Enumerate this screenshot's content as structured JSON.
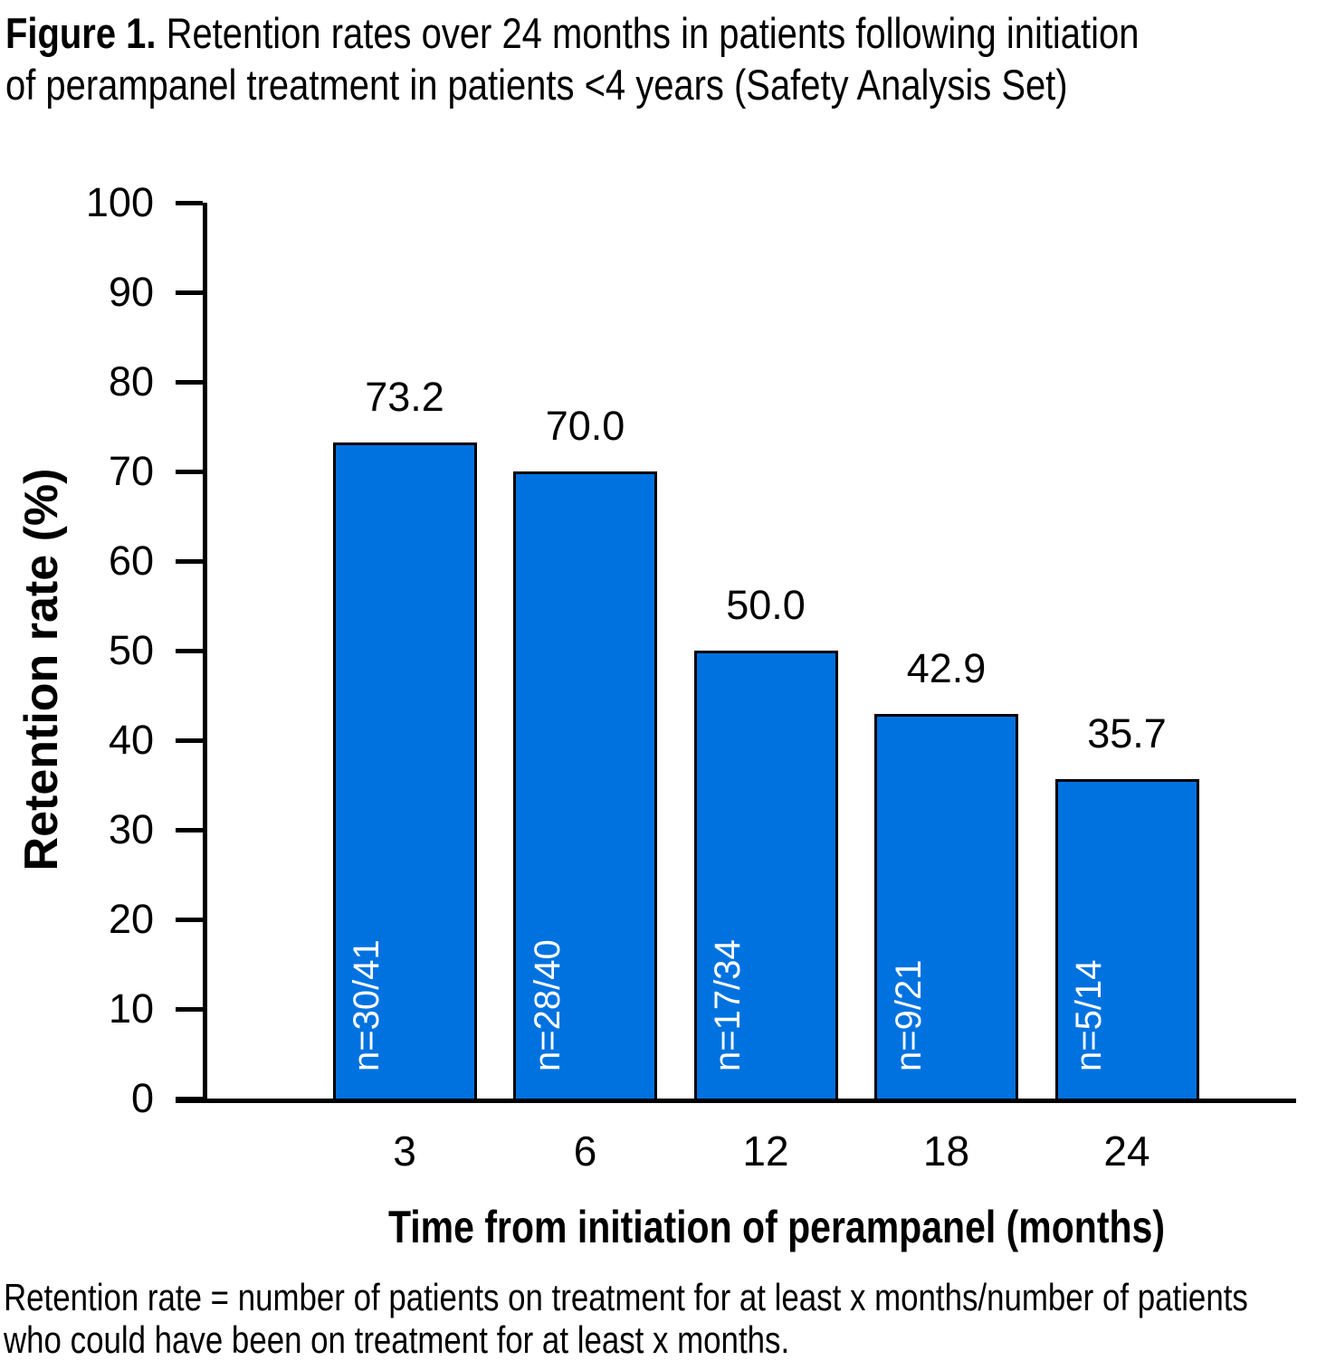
{
  "figure": {
    "title_bold": "Figure 1.",
    "title_line1_rest": " Retention rates over 24 months in patients following initiation",
    "title_line2": "of perampanel treatment in patients <4 years (Safety Analysis Set)",
    "footnote_line1": "Retention rate = number of patients on treatment for at least x months/number of patients",
    "footnote_line2": "who could have been on treatment for at least x months."
  },
  "chart_data": {
    "type": "bar",
    "categories": [
      "3",
      "6",
      "12",
      "18",
      "24"
    ],
    "values": [
      73.2,
      70.0,
      50.0,
      42.9,
      35.7
    ],
    "bar_labels": [
      "n=30/41",
      "n=28/40",
      "n=17/34",
      "n=9/21",
      "n=5/14"
    ],
    "value_label_decimals": 1,
    "xlabel": "Time from initiation of perampanel (months)",
    "ylabel": "Retention rate (%)",
    "ylim": [
      0,
      100
    ],
    "yticks": [
      0,
      10,
      20,
      30,
      40,
      50,
      60,
      70,
      80,
      90,
      100
    ],
    "grid": false,
    "legend": false,
    "bar_color": "#0072E0",
    "bar_border_color": "#000000",
    "bar_label_color": "#FFFFFF",
    "value_label_color": "#000000",
    "axis_color": "#000000"
  }
}
